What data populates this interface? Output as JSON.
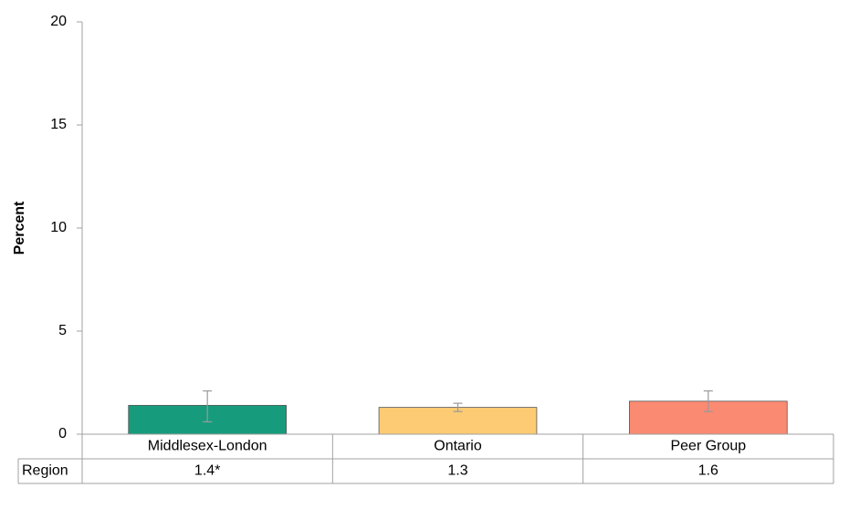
{
  "chart_data": {
    "type": "bar",
    "y_label": "Percent",
    "categories": [
      "Middlesex-London",
      "Ontario",
      "Peer Group"
    ],
    "series": [
      {
        "name": "Region",
        "values": [
          1.4,
          1.3,
          1.6
        ],
        "value_labels": [
          "1.4*",
          "1.3",
          "1.6"
        ],
        "ci_lower": [
          0.6,
          1.1,
          1.1
        ],
        "ci_upper": [
          2.1,
          1.5,
          2.1
        ],
        "colors": [
          "#169c7c",
          "#fdcb73",
          "#fb8a72"
        ]
      }
    ],
    "ylim": [
      0,
      20
    ],
    "yticks": [
      0,
      5,
      10,
      15,
      20
    ],
    "grid": false,
    "error_bar_color": "#999999"
  }
}
